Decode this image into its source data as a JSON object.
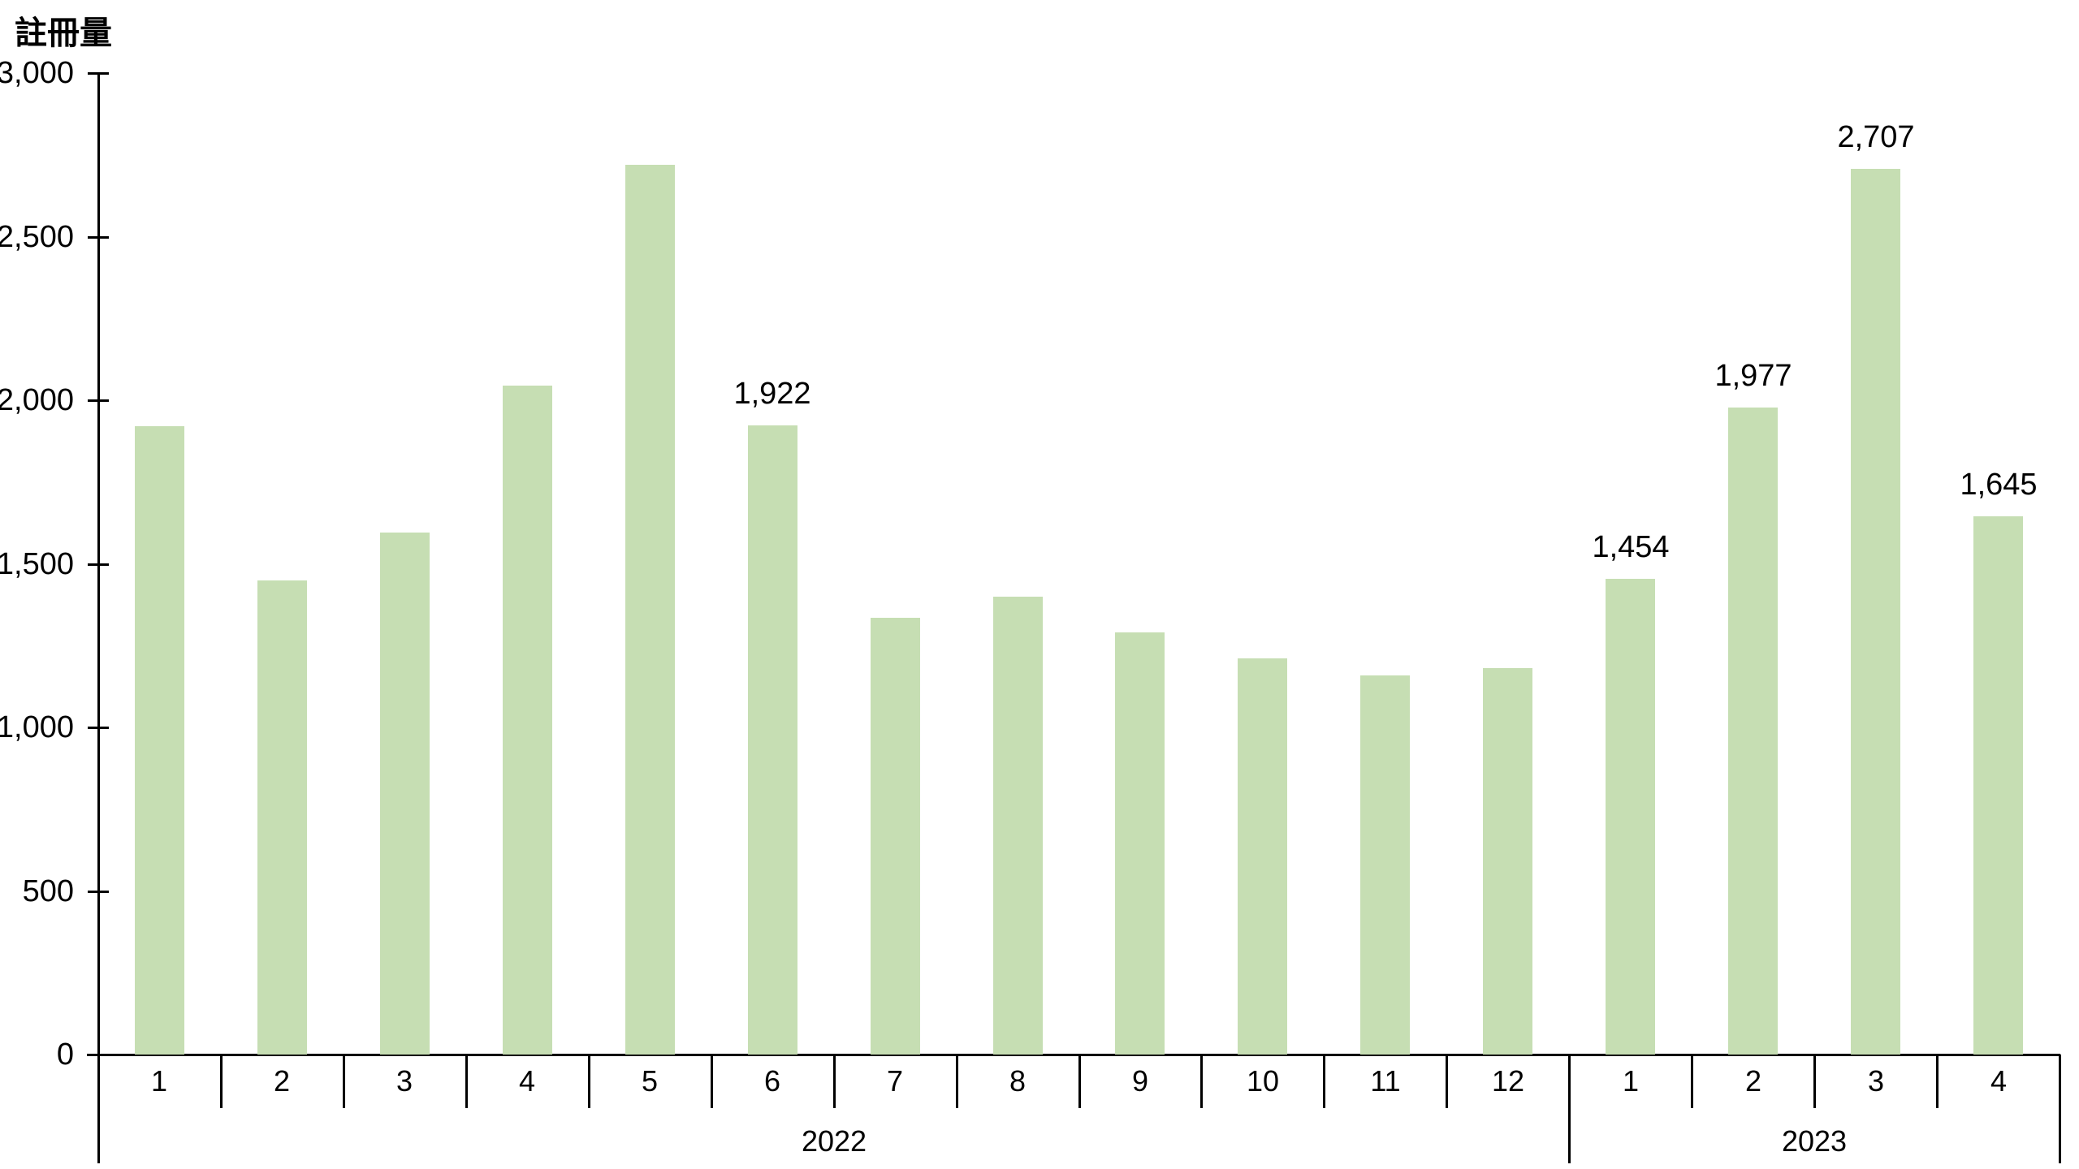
{
  "chart_data": {
    "type": "bar",
    "title": "",
    "ylabel": "註冊量",
    "xlabel": "",
    "ylim": [
      0,
      3000
    ],
    "ytick_interval": 500,
    "ytick_labels": [
      "0",
      "500",
      "1,000",
      "1,500",
      "2,000",
      "2,500",
      "3,000"
    ],
    "grid": false,
    "legend_position": "none",
    "bar_color": "#c6deb3",
    "axis_color": "#000000",
    "groups": [
      {
        "year": "2022",
        "categories": [
          "1",
          "2",
          "3",
          "4",
          "5",
          "6",
          "7",
          "8",
          "9",
          "10",
          "11",
          "12"
        ],
        "values": [
          1920,
          1450,
          1595,
          2045,
          2720,
          1922,
          1335,
          1400,
          1290,
          1210,
          1160,
          1180
        ],
        "data_labels": [
          null,
          null,
          null,
          null,
          null,
          "1,922",
          null,
          null,
          null,
          null,
          null,
          null
        ]
      },
      {
        "year": "2023",
        "categories": [
          "1",
          "2",
          "3",
          "4"
        ],
        "values": [
          1454,
          1977,
          2707,
          1645
        ],
        "data_labels": [
          "1,454",
          "1,977",
          "2,707",
          "1,645"
        ]
      }
    ]
  }
}
